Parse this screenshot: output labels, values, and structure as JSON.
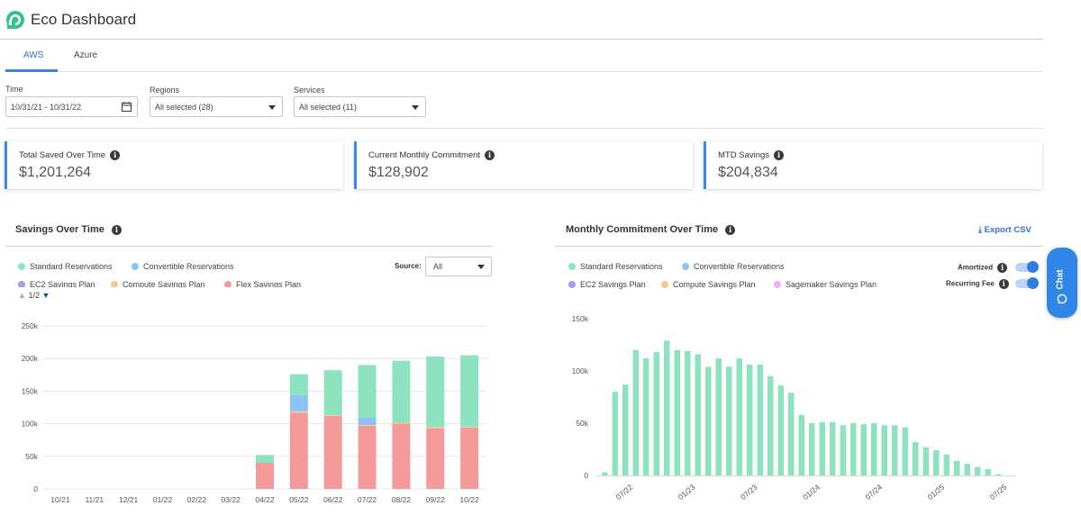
{
  "app": {
    "title": "Eco Dashboard"
  },
  "tabs": [
    {
      "label": "AWS",
      "active": true
    },
    {
      "label": "Azure",
      "active": false
    }
  ],
  "filters": {
    "time": {
      "label": "Time",
      "value": "10/31/21 - 10/31/22"
    },
    "regions": {
      "label": "Regions",
      "value": "All selected (28)"
    },
    "services": {
      "label": "Services",
      "value": "All selected (11)"
    }
  },
  "cards": [
    {
      "label": "Total Saved Over Time",
      "value": "$1,201,264"
    },
    {
      "label": "Current Monthly Commitment",
      "value": "$128,902"
    },
    {
      "label": "MTD Savings",
      "value": "$204,834"
    }
  ],
  "savings_panel": {
    "title": "Savings Over Time",
    "source_label": "Source:",
    "source_value": "All",
    "pager": "1/2",
    "legend": [
      {
        "label": "Standard Reservations",
        "color": "#8de3c0"
      },
      {
        "label": "Convertible Reservations",
        "color": "#8ec4f5"
      },
      {
        "label": "EC2 Savings Plan",
        "color": "#a99af0"
      },
      {
        "label": "Compute Savings Plan",
        "color": "#f6c98b"
      },
      {
        "label": "Flex Savings Plan",
        "color": "#f59a9a"
      }
    ]
  },
  "commitment_panel": {
    "title": "Monthly Commitment Over Time",
    "export_label": "Export CSV",
    "toggles": [
      {
        "label": "Amortized",
        "on": true
      },
      {
        "label": "Recurring Fee",
        "on": true
      }
    ],
    "legend": [
      {
        "label": "Standard Reservations",
        "color": "#8de3c0"
      },
      {
        "label": "Convertible Reservations",
        "color": "#8ec4f5"
      },
      {
        "label": "EC2 Savings Plan",
        "color": "#a99af0"
      },
      {
        "label": "Compute Savings Plan",
        "color": "#f6c98b"
      },
      {
        "label": "Sagemaker Savings Plan",
        "color": "#eeb0ee"
      }
    ]
  },
  "chat": {
    "label": "Chat"
  },
  "chart_data": [
    {
      "type": "bar",
      "stacked": true,
      "title": "Savings Over Time",
      "categories": [
        "10/21",
        "11/21",
        "12/21",
        "01/22",
        "02/22",
        "03/22",
        "04/22",
        "05/22",
        "06/22",
        "07/22",
        "08/22",
        "09/22",
        "10/22"
      ],
      "series": [
        {
          "name": "Flex Savings Plan",
          "color": "#f59a9a",
          "values": [
            0,
            0,
            0,
            0,
            0,
            0,
            40000,
            117000,
            112000,
            97000,
            100000,
            93000,
            94000
          ]
        },
        {
          "name": "Compute Savings Plan",
          "color": "#f6c98b",
          "values": [
            0,
            0,
            0,
            0,
            0,
            0,
            0,
            2000,
            1000,
            1000,
            1500,
            2000,
            1000
          ]
        },
        {
          "name": "Convertible Reservations",
          "color": "#8ec4f5",
          "values": [
            0,
            0,
            0,
            0,
            0,
            0,
            0,
            25000,
            0,
            12000,
            0,
            0,
            0
          ]
        },
        {
          "name": "Standard Reservations",
          "color": "#8de3c0",
          "values": [
            0,
            0,
            0,
            0,
            0,
            0,
            12000,
            32000,
            69000,
            80000,
            95000,
            108000,
            110000
          ]
        }
      ],
      "yticks": [
        "0",
        "50k",
        "100k",
        "150k",
        "200k",
        "250k"
      ],
      "ylim": [
        0,
        250000
      ],
      "grid": true
    },
    {
      "type": "bar",
      "title": "Monthly Commitment Over Time",
      "x_tick_labels": [
        "07/22",
        "01/23",
        "07/23",
        "01/24",
        "07/24",
        "01/25",
        "07/25"
      ],
      "series": [
        {
          "name": "Standard Reservations",
          "color": "#8de3c0",
          "values": [
            3000,
            80000,
            87000,
            120000,
            112000,
            118000,
            129000,
            120000,
            119000,
            116000,
            104000,
            112000,
            104000,
            112000,
            106000,
            106000,
            95000,
            86000,
            79000,
            58000,
            50000,
            51000,
            51000,
            48000,
            50000,
            49000,
            50000,
            48000,
            48000,
            46000,
            32000,
            27000,
            24000,
            20000,
            14000,
            11000,
            8000,
            6000,
            1000
          ]
        }
      ],
      "yticks": [
        "0",
        "50k",
        "100k",
        "150k"
      ],
      "ylim": [
        0,
        150000
      ],
      "grid": false
    }
  ]
}
